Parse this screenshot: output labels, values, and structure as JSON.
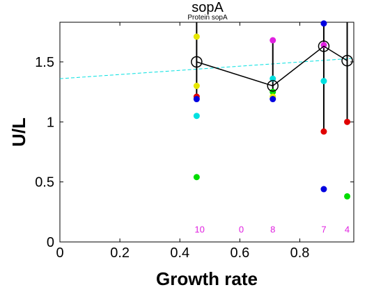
{
  "chart_data": {
    "type": "scatter",
    "title": "sopA",
    "subtitle": "Protein sopA",
    "xlabel": "Growth rate",
    "ylabel": "U/L",
    "xlim": [
      0,
      0.98
    ],
    "ylim": [
      0,
      1.83
    ],
    "xticks": [
      "0",
      "0.2",
      "0.4",
      "0.6",
      "0.8"
    ],
    "xtick_values": [
      0,
      0.2,
      0.4,
      0.6,
      0.8
    ],
    "yticks": [
      "0",
      "0.5",
      "1",
      "1.5"
    ],
    "ytick_values": [
      0,
      0.5,
      1,
      1.5
    ],
    "trend_line": {
      "x": [
        0,
        0.98
      ],
      "y": [
        1.36,
        1.53
      ],
      "color": "#00e0e0",
      "style": "dashed"
    },
    "mean_series": {
      "x": [
        0.456,
        0.71,
        0.88,
        0.958
      ],
      "y": [
        1.5,
        1.3,
        1.63,
        1.51
      ]
    },
    "error_bars": [
      {
        "x": 0.456,
        "low": 1.18,
        "high": 1.83
      },
      {
        "x": 0.71,
        "low": 1.19,
        "high": 1.68
      },
      {
        "x": 0.88,
        "low": 0.92,
        "high": 1.83
      },
      {
        "x": 0.958,
        "low": 1.0,
        "high": 1.83
      }
    ],
    "points": [
      {
        "x": 0.456,
        "y": 1.71,
        "color": "#e6e600"
      },
      {
        "x": 0.456,
        "y": 1.3,
        "color": "#e6e600"
      },
      {
        "x": 0.456,
        "y": 1.21,
        "color": "#e00000"
      },
      {
        "x": 0.456,
        "y": 1.19,
        "color": "#0000e0"
      },
      {
        "x": 0.456,
        "y": 1.05,
        "color": "#00e0e0"
      },
      {
        "x": 0.456,
        "y": 0.54,
        "color": "#00dd00"
      },
      {
        "x": 0.71,
        "y": 1.68,
        "color": "#e020e0"
      },
      {
        "x": 0.71,
        "y": 1.36,
        "color": "#00e0e0"
      },
      {
        "x": 0.71,
        "y": 1.25,
        "color": "#00dd00"
      },
      {
        "x": 0.71,
        "y": 1.21,
        "color": "#e6e600"
      },
      {
        "x": 0.71,
        "y": 1.19,
        "color": "#0000e0"
      },
      {
        "x": 0.88,
        "y": 1.82,
        "color": "#0000e0"
      },
      {
        "x": 0.88,
        "y": 1.64,
        "color": "#e020e0"
      },
      {
        "x": 0.88,
        "y": 1.34,
        "color": "#00e0e0"
      },
      {
        "x": 0.88,
        "y": 0.92,
        "color": "#e00000"
      },
      {
        "x": 0.88,
        "y": 0.44,
        "color": "#0000e0"
      },
      {
        "x": 0.958,
        "y": 1.0,
        "color": "#e00000"
      },
      {
        "x": 0.958,
        "y": 0.38,
        "color": "#00dd00"
      }
    ],
    "counts": [
      {
        "x": 0.466,
        "label": "10"
      },
      {
        "x": 0.605,
        "label": "0"
      },
      {
        "x": 0.71,
        "label": "8"
      },
      {
        "x": 0.88,
        "label": "7"
      },
      {
        "x": 0.958,
        "label": "4"
      }
    ],
    "count_y": 0.1,
    "grid": false,
    "legend": "none"
  }
}
